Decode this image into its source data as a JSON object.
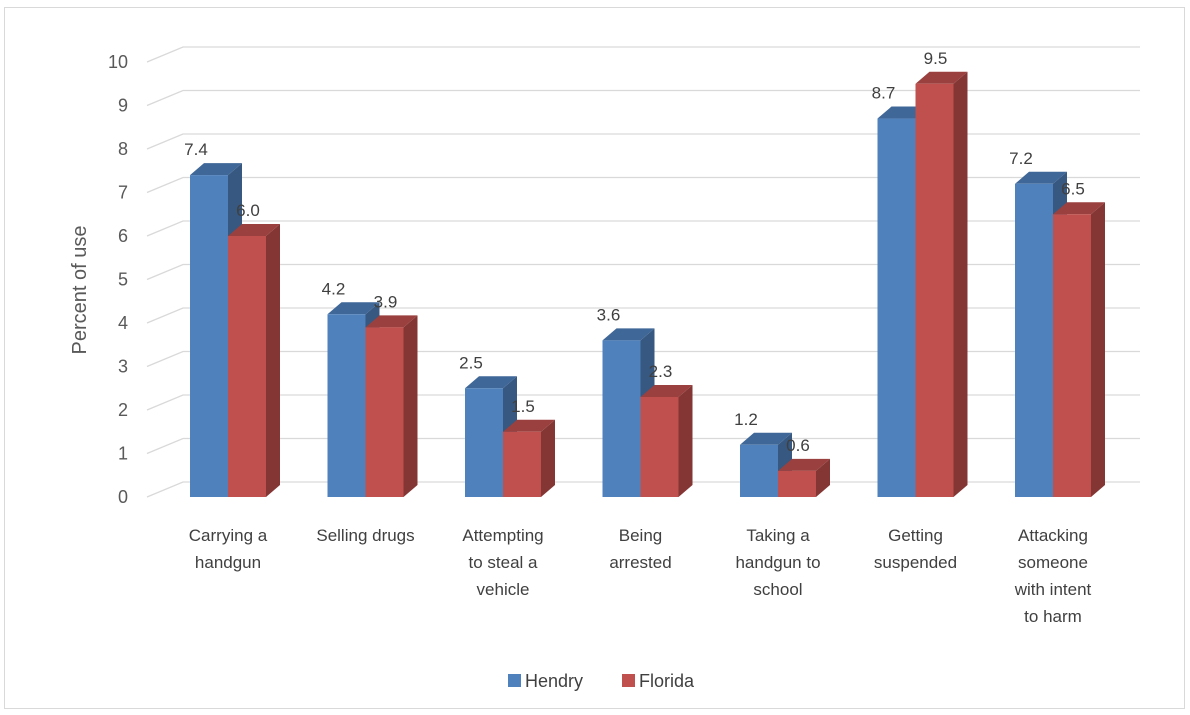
{
  "chart_data": {
    "type": "bar",
    "style": "3d-clustered-column",
    "title": "",
    "xlabel": "",
    "ylabel": "Percent of use",
    "ylim": [
      0,
      10
    ],
    "yticks": [
      "0",
      "1",
      "2",
      "3",
      "4",
      "5",
      "6",
      "7",
      "8",
      "9",
      "10"
    ],
    "grid": true,
    "legend_position": "bottom",
    "categories": [
      [
        "Carrying a",
        "handgun"
      ],
      [
        "Selling drugs"
      ],
      [
        "Attempting",
        "to steal a",
        "vehicle"
      ],
      [
        "Being",
        "arrested"
      ],
      [
        "Taking a",
        "handgun to",
        "school"
      ],
      [
        "Getting",
        "suspended"
      ],
      [
        "Attacking",
        "someone",
        "with intent",
        "to harm"
      ]
    ],
    "series": [
      {
        "name": "Hendry",
        "color": "#4f81bd",
        "values": [
          7.4,
          4.2,
          2.5,
          3.6,
          1.2,
          8.7,
          7.2
        ],
        "labels": [
          "7.4",
          "4.2",
          "2.5",
          "3.6",
          "1.2",
          "8.7",
          "7.2"
        ]
      },
      {
        "name": "Florida",
        "color": "#c0504d",
        "values": [
          6.0,
          3.9,
          1.5,
          2.3,
          0.6,
          9.5,
          6.5
        ],
        "labels": [
          "6.0",
          "3.9",
          "1.5",
          "2.3",
          "0.6",
          "9.5",
          "6.5"
        ]
      }
    ]
  }
}
